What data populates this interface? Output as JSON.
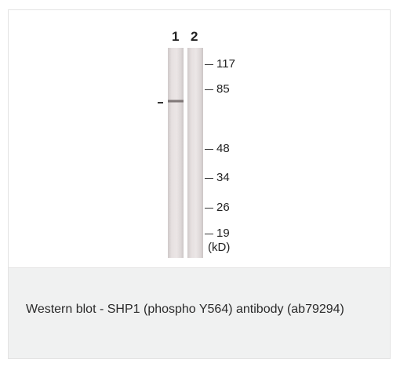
{
  "figure": {
    "lanes": [
      "1",
      "2"
    ],
    "markers": [
      "117",
      "85",
      "48",
      "34",
      "26",
      "19"
    ],
    "unit": "(kD)"
  },
  "caption": {
    "text": "Western blot - SHP1 (phospho Y564) antibody (ab79294)"
  }
}
